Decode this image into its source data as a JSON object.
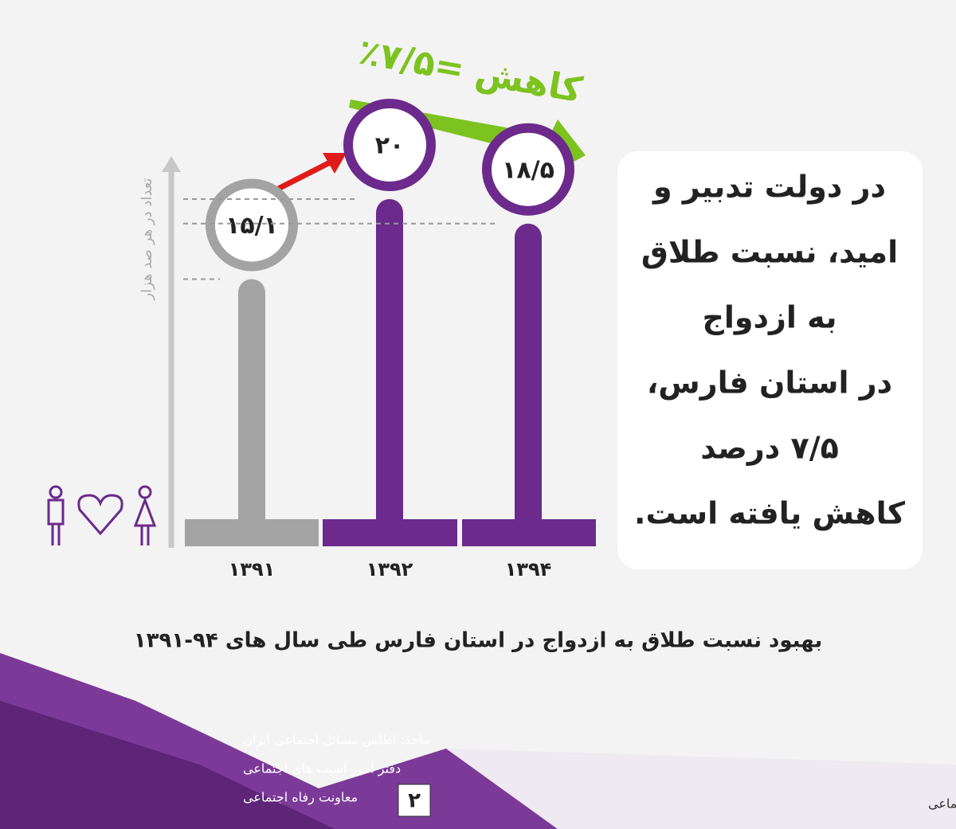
{
  "chart_data": {
    "type": "lollipop",
    "title": "بهبود نسبت طلاق به ازدواج در استان فارس طی سال های ۹۴-۱۳۹۱",
    "y_label": "تعداد در هر صد هزار",
    "annotation": "کاهش =۷/۵٪",
    "categories": [
      "۱۳۹۱",
      "۱۳۹۲",
      "۱۳۹۴"
    ],
    "values": [
      15.1,
      20,
      18.5
    ],
    "value_labels": [
      "۱۵/۱",
      "۲۰",
      "۱۸/۵"
    ],
    "colors": [
      "#a3a3a3",
      "#6b2a8c",
      "#6b2a8c"
    ],
    "ylim": [
      0,
      22
    ]
  },
  "side_text": {
    "lines": [
      "در دولت تدبیر و",
      "امید، نسبت طلاق",
      "به ازدواج",
      "در استان فارس،",
      "۷/۵ درصد",
      "کاهش یافته است."
    ]
  },
  "source": {
    "lines": [
      "ماخذ: اطلس مسائل اجتماعی ایران",
      "دفتر امور آسیب های اجتماعی",
      "معاونت رفاه اجتماعی"
    ]
  },
  "footer": {
    "page_number": "۲",
    "ministry": "وزارت تعاون، کار و رفاه اجتماعی"
  }
}
